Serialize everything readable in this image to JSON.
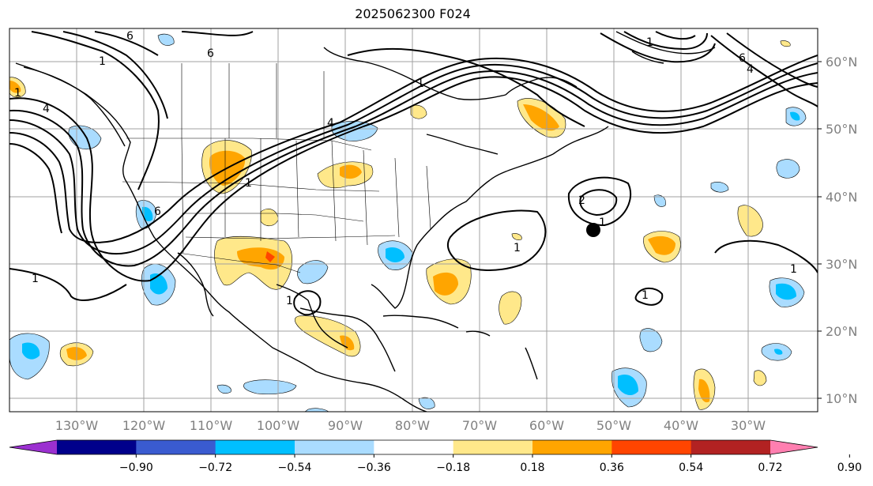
{
  "title": "2025062300 F024",
  "lat_labels": [
    "60°N",
    "50°N",
    "40°N",
    "30°N",
    "20°N",
    "10°N"
  ],
  "lon_labels": [
    "130°W",
    "120°W",
    "110°W",
    "100°W",
    "90°W",
    "80°W",
    "70°W",
    "60°W",
    "50°W",
    "40°W",
    "30°W"
  ],
  "colorbar": {
    "colors": [
      "#9b30d0",
      "#00008b",
      "#3a5bd0",
      "#00bfff",
      "#aadcff",
      "#ffffff",
      "#ffe88a",
      "#ffa500",
      "#ff4500",
      "#b22222",
      "#ff7fb0"
    ],
    "tick_labels": [
      "−0.90",
      "−0.72",
      "−0.54",
      "−0.36",
      "−0.18",
      "0.18",
      "0.36",
      "0.54",
      "0.72",
      "0.90"
    ]
  },
  "contour_labels": [
    "6",
    "6",
    "1",
    "1",
    "4",
    "4",
    "1",
    "1",
    "1",
    "6",
    "4",
    "6",
    "1",
    "1",
    "1",
    "1",
    "2",
    "1",
    "1"
  ],
  "colors": {
    "positive_light": "#ffe88a",
    "positive_mid": "#ffa500",
    "positive_strong": "#ff4500",
    "negative_light": "#aadcff",
    "negative_mid": "#00bfff",
    "grid": "#a0a0a0",
    "contour": "#000000"
  }
}
